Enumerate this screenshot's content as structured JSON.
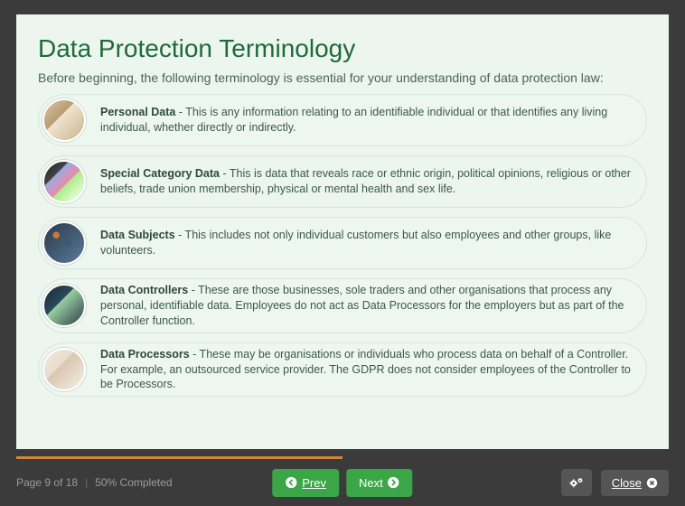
{
  "colors": {
    "frame_bg": "#3b3b3b",
    "panel_bg": "#ecf5ee",
    "heading": "#1f6a3a",
    "intro_text": "#4a6558",
    "term_border": "#d6e5db",
    "term_text": "#3a5a46",
    "term_title": "#2d4a38",
    "progress_fill": "#d5863a",
    "btn_green": "#3aa648",
    "btn_grey": "#555555",
    "footer_text": "#9c9c9c"
  },
  "heading": "Data Protection Terminology",
  "intro": "Before beginning, the following terminology is essential for your understanding of data protection law:",
  "terms": [
    {
      "title": "Personal Data",
      "desc": " - This is any information relating to an identifiable individual or that identifies any living individual, whether directly or indirectly."
    },
    {
      "title": "Special Category Data",
      "desc": " - This is data that reveals race or ethnic origin, political opinions, religious or other beliefs, trade union membership, physical or mental health and sex life."
    },
    {
      "title": "Data Subjects",
      "desc": " - This includes not only individual customers but also employees and other groups, like volunteers."
    },
    {
      "title": "Data Controllers",
      "desc": " - These are those businesses, sole traders and other organisations that process any personal, identifiable data. Employees do not act as Data Processors for the employers but as part of the Controller function."
    },
    {
      "title": "Data Processors",
      "desc": " - These may be organisations or individuals who process data on behalf of a Controller. For example, an outsourced service provider. The GDPR does not consider employees of the Controller to be Processors."
    }
  ],
  "footer": {
    "page_label": "Page 9 of 18",
    "completed_label": "50% Completed",
    "progress_percent": 50,
    "prev_label": "Prev",
    "next_label": "Next",
    "close_label": "Close"
  }
}
